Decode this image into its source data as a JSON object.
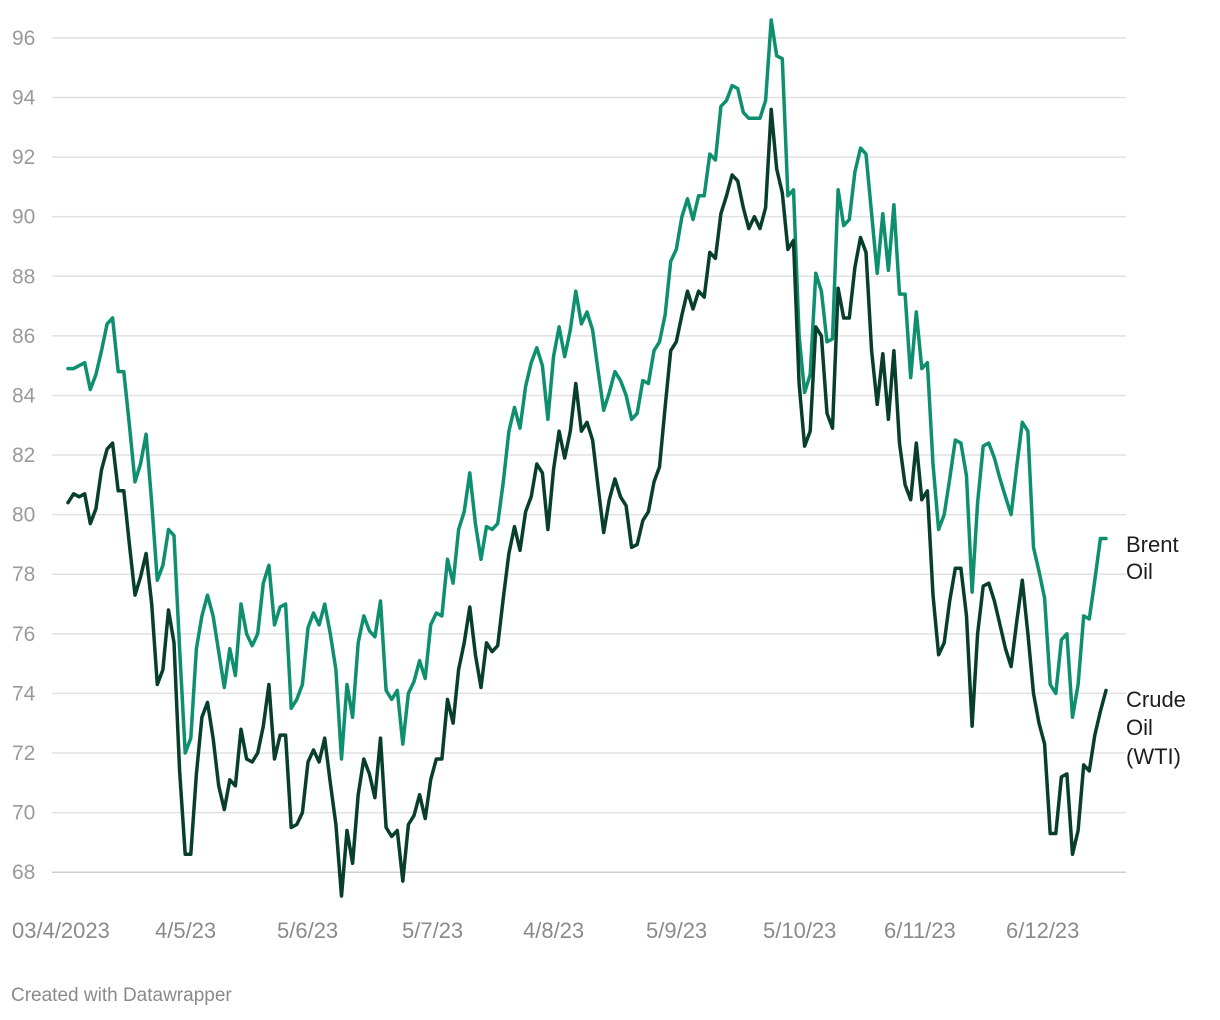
{
  "chart_data": {
    "type": "line",
    "title": "",
    "xlabel": "",
    "ylabel": "",
    "ylim": [
      67,
      96.6
    ],
    "yticks": [
      68,
      70,
      72,
      74,
      76,
      78,
      80,
      82,
      84,
      86,
      88,
      90,
      92,
      94,
      96
    ],
    "xtick_labels": [
      "03/4/2023",
      "4/5/23",
      "5/6/23",
      "5/7/23",
      "4/8/23",
      "5/9/23",
      "5/10/23",
      "6/11/23",
      "6/12/23"
    ],
    "grid": true,
    "legend": "inline labels at line ends",
    "series": [
      {
        "name": "Brent Oil",
        "color": "#0e8f6f",
        "values": [
          84.9,
          84.9,
          85.0,
          85.1,
          84.2,
          84.7,
          85.5,
          86.4,
          86.6,
          84.8,
          84.8,
          83.0,
          81.1,
          81.7,
          82.7,
          80.4,
          77.8,
          78.3,
          79.5,
          79.3,
          75.5,
          72.0,
          72.5,
          75.5,
          76.6,
          77.3,
          76.6,
          75.4,
          74.2,
          75.5,
          74.6,
          77.0,
          76.0,
          75.6,
          76.0,
          77.7,
          78.3,
          76.3,
          76.9,
          77.0,
          73.5,
          73.8,
          74.3,
          76.2,
          76.7,
          76.3,
          77.0,
          76.0,
          74.8,
          71.8,
          74.3,
          73.2,
          75.7,
          76.6,
          76.1,
          75.9,
          77.1,
          74.1,
          73.8,
          74.1,
          72.3,
          74.0,
          74.4,
          75.1,
          74.5,
          76.3,
          76.7,
          76.6,
          78.5,
          77.7,
          79.5,
          80.1,
          81.4,
          79.7,
          78.5,
          79.6,
          79.5,
          79.7,
          81.1,
          82.8,
          83.6,
          82.9,
          84.3,
          85.1,
          85.6,
          85.0,
          83.2,
          85.3,
          86.3,
          85.3,
          86.2,
          87.5,
          86.4,
          86.8,
          86.2,
          84.8,
          83.5,
          84.1,
          84.8,
          84.5,
          84.0,
          83.2,
          83.4,
          84.5,
          84.4,
          85.5,
          85.8,
          86.7,
          88.5,
          88.9,
          90.0,
          90.6,
          89.9,
          90.7,
          90.7,
          92.1,
          91.9,
          93.7,
          93.9,
          94.4,
          94.3,
          93.5,
          93.3,
          93.3,
          93.3,
          93.9,
          96.6,
          95.4,
          95.3,
          90.7,
          90.9,
          86.0,
          84.1,
          84.7,
          88.1,
          87.5,
          85.8,
          85.9,
          90.9,
          89.7,
          89.9,
          91.5,
          92.3,
          92.1,
          90.1,
          88.1,
          90.1,
          88.2,
          90.4,
          87.4,
          87.4,
          84.6,
          86.8,
          84.9,
          85.1,
          81.7,
          79.5,
          80.0,
          81.2,
          82.5,
          82.4,
          81.3,
          77.4,
          80.4,
          82.3,
          82.4,
          81.9,
          81.2,
          80.6,
          80.0,
          81.6,
          83.1,
          82.8,
          78.9,
          78.1,
          77.2,
          74.3,
          74.0,
          75.8,
          76.0,
          73.2,
          74.3,
          76.6,
          76.5,
          77.8,
          79.2,
          79.2
        ]
      },
      {
        "name": "Crude Oil (WTI)",
        "color": "#083f2c",
        "values": [
          80.4,
          80.7,
          80.6,
          80.7,
          79.7,
          80.2,
          81.5,
          82.2,
          82.4,
          80.8,
          80.8,
          79.0,
          77.3,
          77.9,
          78.7,
          77.0,
          74.3,
          74.8,
          76.8,
          75.7,
          71.4,
          68.6,
          68.6,
          71.3,
          73.2,
          73.7,
          72.5,
          70.9,
          70.1,
          71.1,
          70.9,
          72.8,
          71.8,
          71.7,
          72.0,
          72.9,
          74.3,
          71.8,
          72.6,
          72.6,
          69.5,
          69.6,
          70.0,
          71.7,
          72.1,
          71.7,
          72.5,
          71.0,
          69.6,
          67.2,
          69.4,
          68.3,
          70.6,
          71.8,
          71.3,
          70.5,
          72.5,
          69.5,
          69.2,
          69.4,
          67.7,
          69.6,
          69.9,
          70.6,
          69.8,
          71.1,
          71.8,
          71.8,
          73.8,
          73.0,
          74.8,
          75.7,
          76.9,
          75.3,
          74.2,
          75.7,
          75.4,
          75.6,
          77.2,
          78.7,
          79.6,
          78.8,
          80.1,
          80.6,
          81.7,
          81.4,
          79.5,
          81.5,
          82.8,
          81.9,
          82.8,
          84.4,
          82.8,
          83.1,
          82.5,
          80.9,
          79.4,
          80.5,
          81.2,
          80.6,
          80.3,
          78.9,
          79.0,
          79.8,
          80.1,
          81.1,
          81.6,
          83.6,
          85.5,
          85.8,
          86.7,
          87.5,
          86.9,
          87.5,
          87.3,
          88.8,
          88.6,
          90.1,
          90.7,
          91.4,
          91.2,
          90.3,
          89.6,
          90.0,
          89.6,
          90.3,
          93.6,
          91.6,
          90.8,
          88.9,
          89.2,
          84.4,
          82.3,
          82.8,
          86.3,
          86.0,
          83.4,
          82.9,
          87.6,
          86.6,
          86.6,
          88.3,
          89.3,
          88.8,
          85.5,
          83.7,
          85.4,
          83.2,
          85.5,
          82.4,
          81.0,
          80.5,
          82.4,
          80.5,
          80.8,
          77.3,
          75.3,
          75.7,
          77.1,
          78.2,
          78.2,
          76.6,
          72.9,
          76.0,
          77.6,
          77.7,
          77.1,
          76.3,
          75.5,
          74.9,
          76.4,
          77.8,
          76.0,
          74.0,
          73.0,
          72.3,
          69.3,
          69.3,
          71.2,
          71.3,
          68.6,
          69.4,
          71.6,
          71.4,
          72.6,
          73.4,
          74.1
        ]
      }
    ]
  },
  "labels": {
    "brent_line1": "Brent",
    "brent_line2": "Oil",
    "wti_line1": "Crude",
    "wti_line2": "Oil",
    "wti_line3": "(WTI)"
  },
  "credit": "Created with Datawrapper"
}
